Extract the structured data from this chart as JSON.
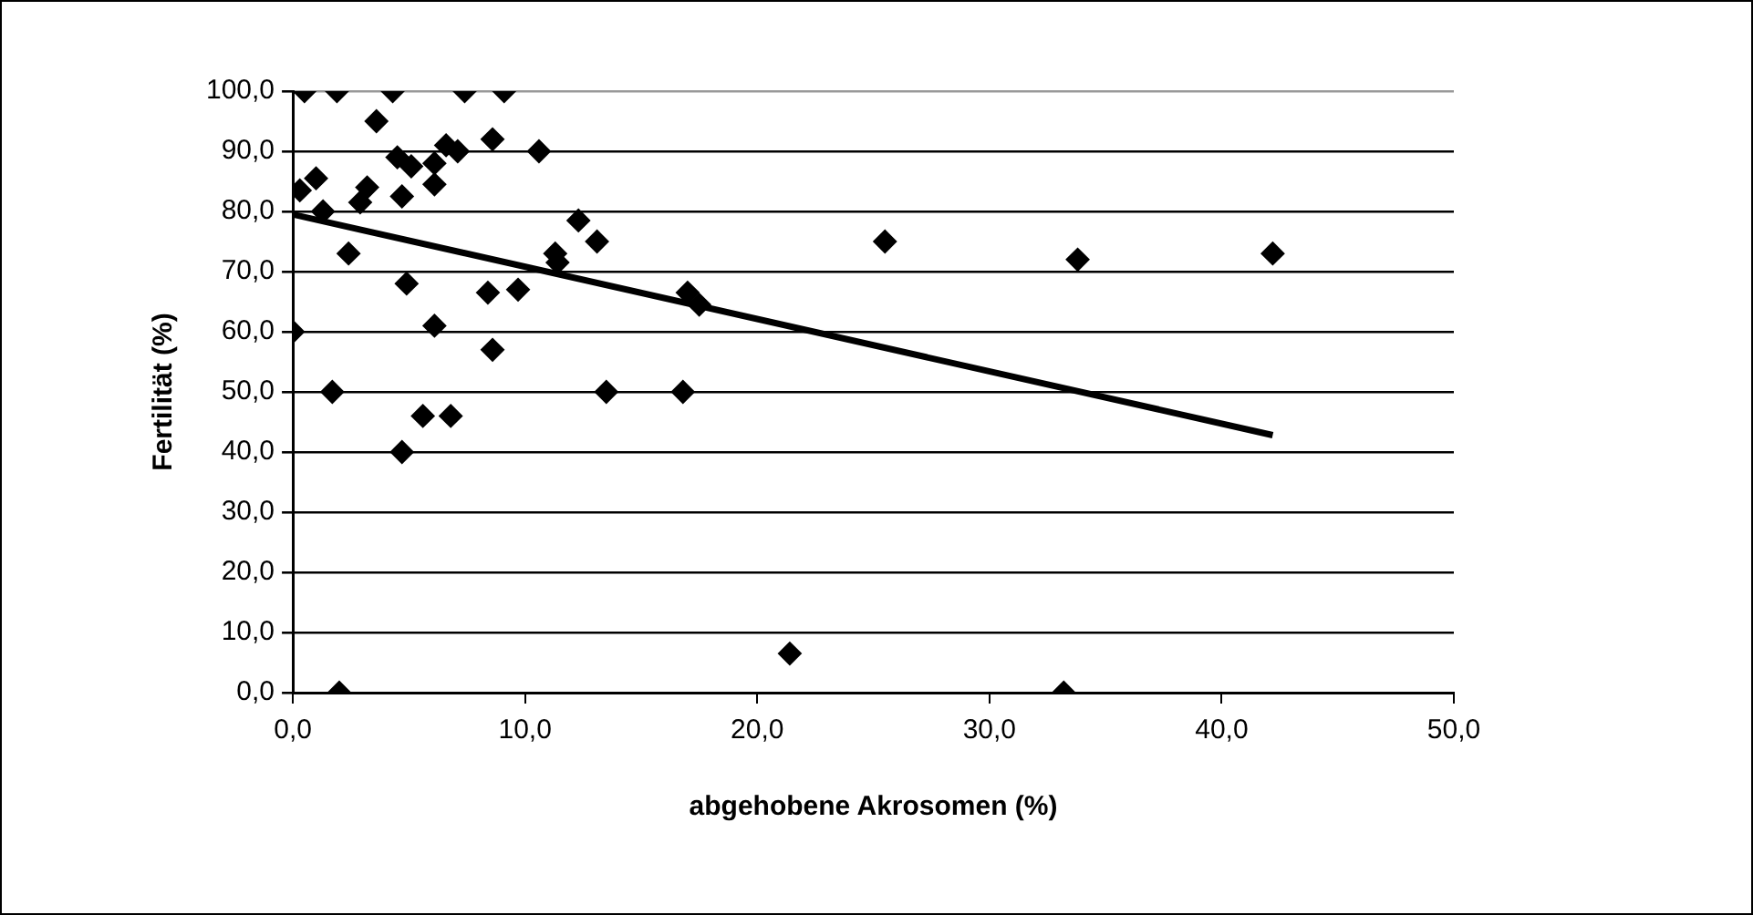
{
  "chart_data": {
    "type": "scatter",
    "xlabel": "abgehobene Akrosomen (%)",
    "ylabel": "Fertilität (%)",
    "xlim": [
      0,
      50
    ],
    "xticks": [
      {
        "value": 0,
        "label": "0,0"
      },
      {
        "value": 10,
        "label": "10,0"
      },
      {
        "value": 20,
        "label": "20,0"
      },
      {
        "value": 30,
        "label": "30,0"
      },
      {
        "value": 40,
        "label": "40,0"
      },
      {
        "value": 50,
        "label": "50,0"
      }
    ],
    "ylim": [
      0,
      100
    ],
    "yticks": [
      {
        "value": 0,
        "label": "0,0"
      },
      {
        "value": 10,
        "label": "10,0"
      },
      {
        "value": 20,
        "label": "20,0"
      },
      {
        "value": 30,
        "label": "30,0"
      },
      {
        "value": 40,
        "label": "40,0"
      },
      {
        "value": 50,
        "label": "50,0"
      },
      {
        "value": 60,
        "label": "60,0"
      },
      {
        "value": 70,
        "label": "70,0"
      },
      {
        "value": 80,
        "label": "80,0"
      },
      {
        "value": 90,
        "label": "90,0"
      },
      {
        "value": 100,
        "label": "100,0"
      }
    ],
    "grid": "y",
    "legend": false,
    "series": [
      {
        "type": "scatter",
        "color": "#000000",
        "marker": "diamond",
        "x": [
          0.5,
          1.9,
          4.3,
          7.4,
          9.1,
          3.6,
          4.5,
          5.1,
          6.6,
          7.1,
          8.6,
          10.6,
          6.1,
          6.1,
          0.3,
          1.0,
          1.3,
          2.9,
          3.2,
          4.7,
          2.4,
          4.9,
          12.3,
          13.1,
          11.3,
          11.4,
          8.4,
          9.7,
          6.1,
          0,
          8.6,
          1.7,
          13.5,
          5.6,
          6.8,
          4.7,
          2.0,
          17.0,
          17.5,
          16.8,
          25.5,
          33.8,
          42.2,
          21.4,
          33.2
        ],
        "values": [
          100,
          100,
          100,
          100,
          100,
          95,
          89,
          87.5,
          91,
          90,
          92,
          90,
          88,
          84.5,
          83.5,
          85.5,
          80,
          81.5,
          84,
          82.5,
          73,
          68,
          78.5,
          75,
          73,
          71.5,
          66.5,
          67,
          61,
          60,
          57,
          50,
          50,
          46,
          46,
          40,
          0,
          66.5,
          64.5,
          50,
          75,
          72,
          73,
          6.5,
          0
        ]
      },
      {
        "type": "line",
        "color": "#000000",
        "marker": "none",
        "line_style": "solid",
        "x": [
          0,
          42.2
        ],
        "values": [
          79.5,
          42.8
        ]
      }
    ]
  }
}
